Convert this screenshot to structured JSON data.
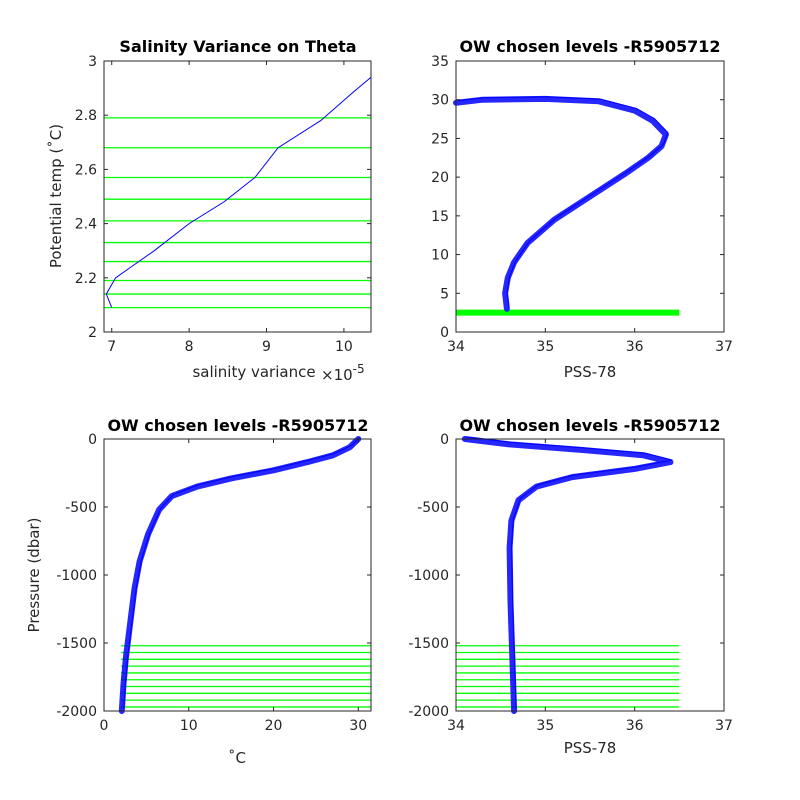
{
  "colors": {
    "profile": "#0000ff",
    "level": "#00ff00",
    "axis": "#262626"
  },
  "chart_data": [
    {
      "type": "line",
      "title": "Salinity Variance on Theta",
      "xlabel": "salinity variance",
      "xexponent": "×10",
      "xexponent_power": "-5",
      "ylabel": "Potential temp (˚C)",
      "xlim": [
        6.9,
        10.35
      ],
      "ylim": [
        2,
        3
      ],
      "xticks": [
        7,
        8,
        9,
        10
      ],
      "yticks": [
        2,
        2.2,
        2.4,
        2.6,
        2.8,
        3
      ],
      "ytick_labels": [
        "2",
        "2.2",
        "2.4",
        "2.6",
        "2.8",
        "3"
      ],
      "series": [
        {
          "x": [
            7.0,
            6.93,
            7.05,
            7.55,
            8.0,
            8.45,
            8.85,
            9.15,
            9.7,
            10.1,
            10.35
          ],
          "y": [
            2.09,
            2.14,
            2.2,
            2.3,
            2.4,
            2.48,
            2.57,
            2.68,
            2.78,
            2.88,
            2.94
          ]
        }
      ],
      "levels": [
        2.09,
        2.14,
        2.19,
        2.26,
        2.33,
        2.41,
        2.49,
        2.57,
        2.68,
        2.79
      ]
    },
    {
      "type": "line",
      "title": "OW chosen levels -R5905712",
      "xlabel": "PSS-78",
      "ylabel": "",
      "xlim": [
        34,
        37
      ],
      "ylim": [
        0,
        35
      ],
      "xticks": [
        34,
        35,
        36,
        37
      ],
      "yticks": [
        0,
        5,
        10,
        15,
        20,
        25,
        30,
        35
      ],
      "ytick_labels": [
        "0",
        "5",
        "10",
        "15",
        "20",
        "25",
        "30",
        "35"
      ],
      "series": [
        {
          "x": [
            34.0,
            34.3,
            35.0,
            35.6,
            36.0,
            36.2,
            36.35,
            36.3,
            36.15,
            35.9,
            35.5,
            35.1,
            34.8,
            34.65,
            34.58,
            34.55,
            34.57
          ],
          "y": [
            29.6,
            30.0,
            30.1,
            29.8,
            28.6,
            27.3,
            25.5,
            24.0,
            22.5,
            20.5,
            17.5,
            14.5,
            11.5,
            9.0,
            7.0,
            5.0,
            3.0
          ]
        }
      ],
      "band_series": true,
      "levels": [
        2.5
      ],
      "level_x": [
        34.0,
        36.5
      ]
    },
    {
      "type": "line",
      "title": "OW chosen levels -R5905712",
      "xlabel": "˚C",
      "ylabel": "Pressure (dbar)",
      "xlim": [
        0,
        31.5
      ],
      "ylim": [
        -2000,
        0
      ],
      "xticks": [
        0,
        10,
        20,
        30
      ],
      "yticks": [
        -2000,
        -1500,
        -1000,
        -500,
        0
      ],
      "ytick_labels": [
        "-2000",
        "-1500",
        "-1000",
        "-500",
        "0"
      ],
      "series": [
        {
          "x": [
            30.0,
            29.0,
            27.0,
            24.0,
            20.0,
            15.0,
            11.0,
            8.0,
            6.5,
            5.2,
            4.2,
            3.6,
            3.0,
            2.6,
            2.3,
            2.1
          ],
          "y": [
            0,
            -60,
            -120,
            -170,
            -230,
            -290,
            -350,
            -420,
            -520,
            -700,
            -900,
            -1100,
            -1400,
            -1600,
            -1800,
            -2000
          ]
        }
      ],
      "band_series": true,
      "levels": [
        -1520,
        -1570,
        -1620,
        -1670,
        -1720,
        -1770,
        -1820,
        -1870,
        -1920,
        -1970
      ],
      "level_x": [
        2.0,
        31.5
      ]
    },
    {
      "type": "line",
      "title": "OW chosen levels -R5905712",
      "xlabel": "PSS-78",
      "ylabel": "",
      "xlim": [
        34,
        37
      ],
      "ylim": [
        -2000,
        0
      ],
      "xticks": [
        34,
        35,
        36,
        37
      ],
      "yticks": [
        -2000,
        -1500,
        -1000,
        -500,
        0
      ],
      "ytick_labels": [
        "-2000",
        "-1500",
        "-1000",
        "-500",
        "0"
      ],
      "series": [
        {
          "x": [
            34.1,
            34.6,
            35.4,
            36.1,
            36.4,
            36.0,
            35.3,
            34.9,
            34.7,
            34.62,
            34.6,
            34.61,
            34.63,
            34.65
          ],
          "y": [
            0,
            -40,
            -80,
            -120,
            -170,
            -220,
            -280,
            -350,
            -450,
            -600,
            -800,
            -1200,
            -1600,
            -2000
          ]
        }
      ],
      "band_series": true,
      "levels": [
        -1520,
        -1570,
        -1620,
        -1670,
        -1720,
        -1770,
        -1820,
        -1870,
        -1920,
        -1970
      ],
      "level_x": [
        34.0,
        36.5
      ]
    }
  ]
}
